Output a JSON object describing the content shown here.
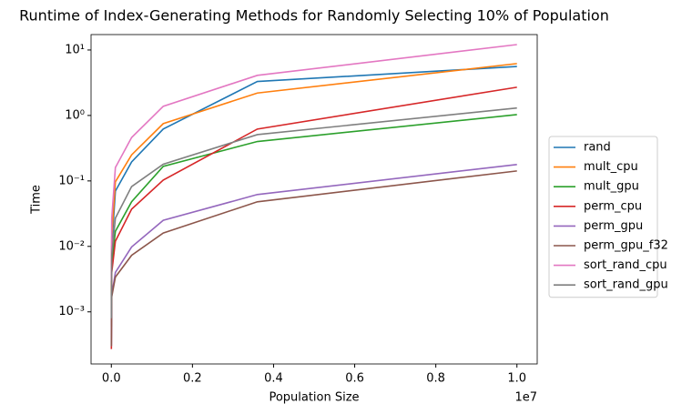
{
  "chart_data": {
    "type": "line",
    "title": "Runtime of Index-Generating Methods for Randomly Selecting 10% of Population",
    "x_label": "Population Size",
    "y_label": "Time",
    "x_offset_label": "1e7",
    "y_scale": "log",
    "legend": "right-outside",
    "x": [
      1000,
      10000,
      100000,
      500000,
      1280000,
      3600000,
      10000000
    ],
    "xlim": [
      -500000,
      10500000
    ],
    "xticks": [
      {
        "value": 0,
        "label": "0.0"
      },
      {
        "value": 2000000,
        "label": "0.2"
      },
      {
        "value": 4000000,
        "label": "0.4"
      },
      {
        "value": 6000000,
        "label": "0.6"
      },
      {
        "value": 8000000,
        "label": "0.8"
      },
      {
        "value": 10000000,
        "label": "1.0"
      }
    ],
    "ylim": [
      0.00016,
      17.2
    ],
    "yticks": [
      {
        "value": 0.001,
        "label": "10⁻³"
      },
      {
        "value": 0.01,
        "label": "10⁻²"
      },
      {
        "value": 0.1,
        "label": "10⁻¹"
      },
      {
        "value": 1,
        "label": "10⁰"
      },
      {
        "value": 10,
        "label": "10¹"
      }
    ],
    "series": [
      {
        "name": "rand",
        "color": "#1f77b4",
        "values": [
          0.0015,
          0.01,
          0.07,
          0.195,
          0.62,
          3.3,
          5.6
        ]
      },
      {
        "name": "mult_cpu",
        "color": "#ff7f0e",
        "values": [
          0.002,
          0.014,
          0.097,
          0.25,
          0.75,
          2.2,
          6.2
        ]
      },
      {
        "name": "mult_gpu",
        "color": "#2ca02c",
        "values": [
          0.0006,
          0.0055,
          0.017,
          0.048,
          0.167,
          0.4,
          1.03
        ]
      },
      {
        "name": "perm_cpu",
        "color": "#d62728",
        "values": [
          0.00027,
          0.004,
          0.012,
          0.037,
          0.103,
          0.62,
          2.7
        ]
      },
      {
        "name": "perm_gpu",
        "color": "#9467bd",
        "values": [
          0.0003,
          0.0018,
          0.004,
          0.0098,
          0.025,
          0.062,
          0.178
        ]
      },
      {
        "name": "perm_gpu_f32",
        "color": "#8c564b",
        "values": [
          0.0003,
          0.0017,
          0.0034,
          0.0073,
          0.016,
          0.048,
          0.142
        ]
      },
      {
        "name": "sort_rand_cpu",
        "color": "#e377c2",
        "values": [
          0.003,
          0.027,
          0.16,
          0.46,
          1.38,
          4.1,
          12.1
        ]
      },
      {
        "name": "sort_rand_gpu",
        "color": "#7f7f7f",
        "values": [
          0.0008,
          0.0075,
          0.027,
          0.082,
          0.18,
          0.51,
          1.3
        ]
      }
    ]
  }
}
